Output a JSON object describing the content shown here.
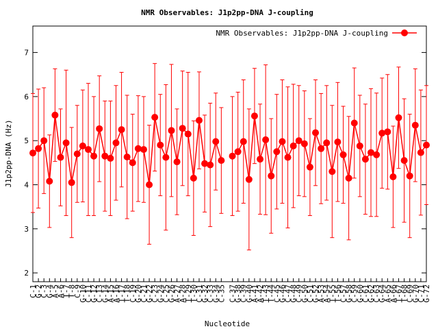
{
  "chart_data": {
    "type": "line",
    "title": "NMR Observables: J1p2pp-DNA J-coupling",
    "xlabel": "Nucleotide",
    "ylabel": "J1p2pp-DNA (Hz)",
    "ylim": [
      1.8,
      7.6
    ],
    "yticks": [
      2,
      3,
      4,
      5,
      6,
      7
    ],
    "grid": false,
    "legend_position": "top-right",
    "series": [
      {
        "name": "NMR Observables: J1p2pp-DNA J-coupling",
        "color": "#ff0000",
        "x": [
          1,
          2,
          3,
          4,
          5,
          6,
          7,
          8,
          9,
          10,
          11,
          12,
          13,
          14,
          15,
          16,
          17,
          18,
          19,
          20,
          21,
          22,
          23,
          24,
          25,
          26,
          27,
          28,
          29,
          30,
          31,
          32,
          33,
          34,
          35,
          37,
          38,
          39,
          40,
          41,
          42,
          43,
          44,
          45,
          46,
          47,
          48,
          49,
          50,
          51,
          52,
          53,
          54,
          55,
          56,
          57,
          58,
          59,
          60,
          61,
          62,
          63,
          64,
          65,
          66,
          67,
          68,
          69,
          70,
          71,
          72
        ],
        "values": [
          4.72,
          4.82,
          5.0,
          4.08,
          5.58,
          4.62,
          4.95,
          4.05,
          4.7,
          4.88,
          4.8,
          4.65,
          5.27,
          4.65,
          4.6,
          4.95,
          5.25,
          4.63,
          4.5,
          4.82,
          4.8,
          4.0,
          5.53,
          4.9,
          4.62,
          5.23,
          4.52,
          5.28,
          5.15,
          4.15,
          5.46,
          4.48,
          4.45,
          4.98,
          4.55,
          4.65,
          4.75,
          4.98,
          4.12,
          5.56,
          4.58,
          5.02,
          4.2,
          4.75,
          4.98,
          4.62,
          4.88,
          5.0,
          4.93,
          4.4,
          5.18,
          4.82,
          4.95,
          4.3,
          4.97,
          4.68,
          4.15,
          5.4,
          4.88,
          4.58,
          4.73,
          4.68,
          5.17,
          5.2,
          4.18,
          5.52,
          4.55,
          4.2,
          5.35,
          4.73,
          4.9
        ],
        "errors": [
          1.35,
          1.35,
          1.2,
          1.05,
          1.05,
          1.1,
          1.65,
          1.25,
          1.1,
          1.27,
          1.5,
          1.35,
          1.2,
          1.25,
          1.3,
          1.3,
          1.3,
          1.4,
          1.1,
          1.2,
          1.2,
          1.35,
          1.22,
          1.15,
          1.65,
          1.5,
          1.2,
          1.3,
          1.4,
          1.3,
          1.1,
          1.1,
          1.4,
          1.1,
          1.2,
          1.35,
          1.35,
          1.4,
          1.6,
          1.08,
          1.25,
          1.7,
          1.3,
          1.3,
          1.4,
          1.6,
          1.4,
          1.25,
          1.2,
          1.1,
          1.2,
          1.25,
          1.3,
          1.5,
          1.35,
          1.1,
          1.4,
          1.25,
          1.15,
          1.25,
          1.45,
          1.4,
          1.25,
          1.3,
          1.15,
          1.15,
          1.4,
          1.4,
          1.28,
          1.42,
          1.35
        ]
      }
    ],
    "tick_labels": [
      "C-1",
      "G-2",
      "C-3",
      "G-4",
      "A-5",
      "A-6",
      "T-7",
      "T-8",
      "C-9",
      "G-10",
      "C-11",
      "G-12",
      "C-13",
      "G-14",
      "A-15",
      "A-16",
      "T-17",
      "T-18",
      "C-19",
      "G-20",
      "C-21",
      "G-22",
      "C-23",
      "G-24",
      "C-25",
      "G-26",
      "A-27",
      "A-28",
      "T-29",
      "T-30",
      "C-31",
      "G-32",
      "C-33",
      "G-34",
      "C-35",
      "C-37",
      "G-38",
      "C-39",
      "G-40",
      "A-41",
      "A-42",
      "T-43",
      "T-44",
      "C-45",
      "G-46",
      "C-47",
      "G-48",
      "C-49",
      "G-50",
      "C-51",
      "G-52",
      "A-53",
      "A-54",
      "T-55",
      "T-56",
      "C-57",
      "G-58",
      "C-59",
      "G-60",
      "C-61",
      "G-62",
      "C-63",
      "G-64",
      "A-65",
      "A-66",
      "T-67",
      "T-68",
      "C-69",
      "G-70",
      "C-71",
      "G-72"
    ]
  }
}
